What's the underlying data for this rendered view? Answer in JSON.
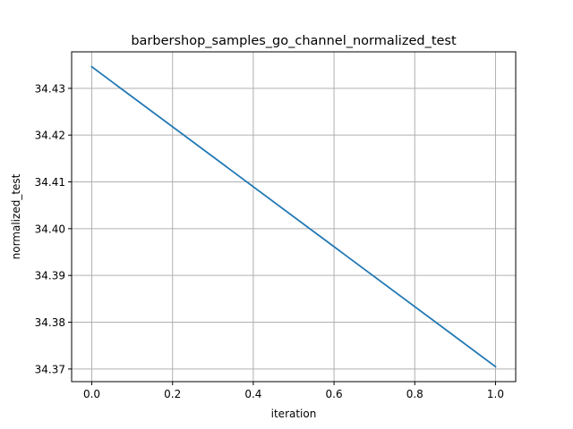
{
  "chart_data": {
    "type": "line",
    "title": "barbershop_samples_go_channel_normalized_test",
    "xlabel": "iteration",
    "ylabel": "normalized_test",
    "x": [
      0.0,
      1.0
    ],
    "series": [
      {
        "values": [
          34.4346,
          34.3705
        ],
        "color": "#1f77b4"
      }
    ],
    "xlim": [
      -0.05,
      1.05
    ],
    "ylim": [
      34.3673,
      34.4378
    ],
    "xticks": [
      0.0,
      0.2,
      0.4,
      0.6,
      0.8,
      1.0
    ],
    "xtick_labels": [
      "0.0",
      "0.2",
      "0.4",
      "0.6",
      "0.8",
      "1.0"
    ],
    "yticks": [
      34.37,
      34.38,
      34.39,
      34.4,
      34.41,
      34.42,
      34.43
    ],
    "ytick_labels": [
      "34.37",
      "34.38",
      "34.39",
      "34.40",
      "34.41",
      "34.42",
      "34.43"
    ],
    "grid": true,
    "grid_color": "#b0b0b0"
  }
}
